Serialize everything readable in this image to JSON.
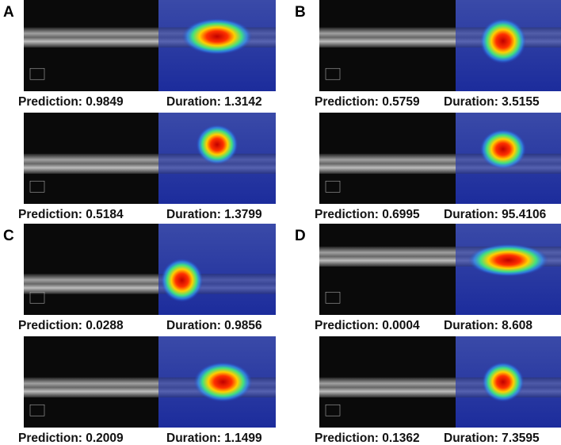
{
  "panels": [
    {
      "label": "A",
      "items": [
        {
          "prediction": "Prediction: 0.9849",
          "duration": "Duration: 1.3142"
        },
        {
          "prediction": "Prediction: 0.5184",
          "duration": "Duration: 1.3799"
        }
      ]
    },
    {
      "label": "B",
      "items": [
        {
          "prediction": "Prediction: 0.5759",
          "duration": "Duration: 3.5155"
        },
        {
          "prediction": "Prediction: 0.6995",
          "duration": "Duration: 95.4106"
        }
      ]
    },
    {
      "label": "C",
      "items": [
        {
          "prediction": "Prediction: 0.0288",
          "duration": "Duration: 0.9856"
        },
        {
          "prediction": "Prediction: 0.2009",
          "duration": "Duration: 1.1499"
        }
      ]
    },
    {
      "label": "D",
      "items": [
        {
          "prediction": "Prediction: 0.0004",
          "duration": "Duration: 8.608"
        },
        {
          "prediction": "Prediction: 0.1362",
          "duration": "Duration: 7.3595"
        }
      ]
    }
  ]
}
